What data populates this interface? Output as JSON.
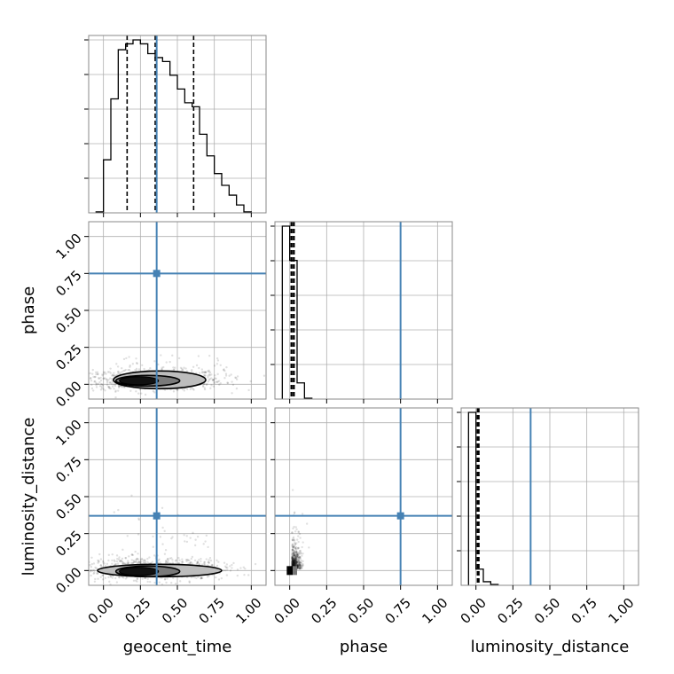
{
  "chart_data": {
    "type": "corner",
    "parameters": [
      "geocent_time",
      "phase",
      "luminosity_distance"
    ],
    "truths": {
      "geocent_time": 0.36,
      "phase": 0.75,
      "luminosity_distance": 0.37
    },
    "colors": {
      "truth": "#4682b4",
      "hist": "#000000",
      "grid": "#b0b0b0"
    },
    "xlim": [
      -0.1,
      1.1
    ],
    "ylim": [
      -0.1,
      1.1
    ],
    "tick_values": [
      0.0,
      0.25,
      0.5,
      0.75,
      1.0
    ],
    "tick_labels": [
      "0.00",
      "0.25",
      "0.50",
      "0.75",
      "1.00"
    ],
    "grid": true,
    "histograms": [
      {
        "param": "geocent_time",
        "bin_edges": [
          -0.05,
          0.0,
          0.05,
          0.1,
          0.15,
          0.2,
          0.25,
          0.3,
          0.35,
          0.4,
          0.45,
          0.5,
          0.55,
          0.6,
          0.65,
          0.7,
          0.75,
          0.8,
          0.85,
          0.9,
          0.95,
          1.0
        ],
        "counts": [
          0.5,
          27,
          58,
          83,
          86,
          88,
          86,
          81,
          79,
          77,
          70,
          63,
          56,
          54,
          40,
          29,
          20,
          14,
          9,
          4,
          0.5
        ],
        "quantiles": [
          0.16,
          0.35,
          0.61
        ]
      },
      {
        "param": "phase",
        "bin_edges": [
          -0.05,
          0.0,
          0.05,
          0.1,
          0.15
        ],
        "counts": [
          96,
          77,
          9,
          0.5
        ],
        "quantiles": [
          0.01,
          0.02,
          0.03
        ]
      },
      {
        "param": "luminosity_distance",
        "bin_edges": [
          -0.05,
          0.0,
          0.05,
          0.1,
          0.15
        ],
        "counts": [
          96,
          9,
          2,
          0.5
        ],
        "quantiles": [
          0.01,
          0.015,
          0.02
        ]
      }
    ]
  }
}
